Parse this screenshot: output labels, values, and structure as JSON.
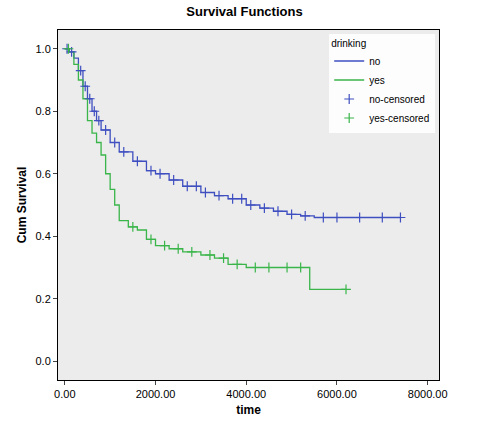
{
  "chart_data": {
    "type": "line",
    "title": "Survival Functions",
    "x_label": "time",
    "y_label": "Cum Survival",
    "legend_title": "drinking",
    "legend": "top right",
    "grid": false,
    "xlim": [
      -150,
      8250
    ],
    "ylim": [
      -0.06,
      1.06
    ],
    "xticks": [
      {
        "value": 0,
        "label": "0.00"
      },
      {
        "value": 2000,
        "label": "2000.00"
      },
      {
        "value": 4000,
        "label": "4000.00"
      },
      {
        "value": 6000,
        "label": "6000.00"
      },
      {
        "value": 8000,
        "label": "8000.00"
      }
    ],
    "yticks": [
      {
        "value": 0,
        "label": "0.0"
      },
      {
        "value": 0.2,
        "label": "0.2"
      },
      {
        "value": 0.4,
        "label": "0.4"
      },
      {
        "value": 0.6,
        "label": "0.6"
      },
      {
        "value": 0.8,
        "label": "0.8"
      },
      {
        "value": 1,
        "label": "1.0"
      }
    ],
    "series": [
      {
        "name": "no",
        "type": "line",
        "color": "#3f4fc0",
        "line_style": "solid",
        "x": [
          0,
          100,
          200,
          300,
          400,
          500,
          600,
          700,
          800,
          1000,
          1200,
          1500,
          1800,
          2000,
          2300,
          2600,
          3000,
          3300,
          3600,
          4000,
          4300,
          4600,
          4900,
          5200,
          5500,
          7400
        ],
        "values": [
          1.0,
          0.99,
          0.97,
          0.93,
          0.88,
          0.84,
          0.8,
          0.77,
          0.74,
          0.7,
          0.67,
          0.64,
          0.61,
          0.6,
          0.58,
          0.56,
          0.54,
          0.53,
          0.52,
          0.5,
          0.49,
          0.48,
          0.47,
          0.465,
          0.46,
          0.46
        ]
      },
      {
        "name": "yes",
        "type": "line",
        "color": "#3ab54a",
        "line_style": "solid",
        "x": [
          0,
          100,
          200,
          300,
          400,
          500,
          600,
          700,
          800,
          900,
          1000,
          1100,
          1200,
          1400,
          1600,
          1800,
          2000,
          2300,
          2600,
          3000,
          3300,
          3600,
          4000,
          5400,
          6200
        ],
        "values": [
          1.0,
          0.99,
          0.95,
          0.9,
          0.84,
          0.77,
          0.73,
          0.7,
          0.66,
          0.6,
          0.55,
          0.5,
          0.45,
          0.43,
          0.42,
          0.39,
          0.37,
          0.36,
          0.35,
          0.34,
          0.33,
          0.31,
          0.3,
          0.23,
          0.23
        ]
      },
      {
        "name": "no-censored",
        "type": "scatter",
        "color": "#3f4fc0",
        "marker": "cross",
        "x": [
          50,
          150,
          350,
          450,
          550,
          650,
          750,
          900,
          1100,
          1300,
          1600,
          1900,
          2100,
          2400,
          2700,
          2900,
          3100,
          3400,
          3700,
          3900,
          4100,
          4400,
          4700,
          5000,
          5300,
          5700,
          6000,
          6500,
          7000,
          7400
        ],
        "values": [
          1.0,
          0.99,
          0.93,
          0.88,
          0.84,
          0.8,
          0.77,
          0.74,
          0.7,
          0.67,
          0.64,
          0.61,
          0.6,
          0.58,
          0.56,
          0.56,
          0.54,
          0.53,
          0.52,
          0.52,
          0.5,
          0.49,
          0.48,
          0.47,
          0.465,
          0.46,
          0.46,
          0.46,
          0.46,
          0.46
        ]
      },
      {
        "name": "yes-censored",
        "type": "scatter",
        "color": "#3ab54a",
        "marker": "cross",
        "x": [
          80,
          1500,
          1900,
          2200,
          2500,
          2800,
          3200,
          3500,
          3800,
          4200,
          4500,
          4900,
          5200,
          6200
        ],
        "values": [
          1.0,
          0.43,
          0.39,
          0.37,
          0.36,
          0.35,
          0.34,
          0.33,
          0.31,
          0.3,
          0.3,
          0.3,
          0.3,
          0.23
        ]
      }
    ]
  }
}
